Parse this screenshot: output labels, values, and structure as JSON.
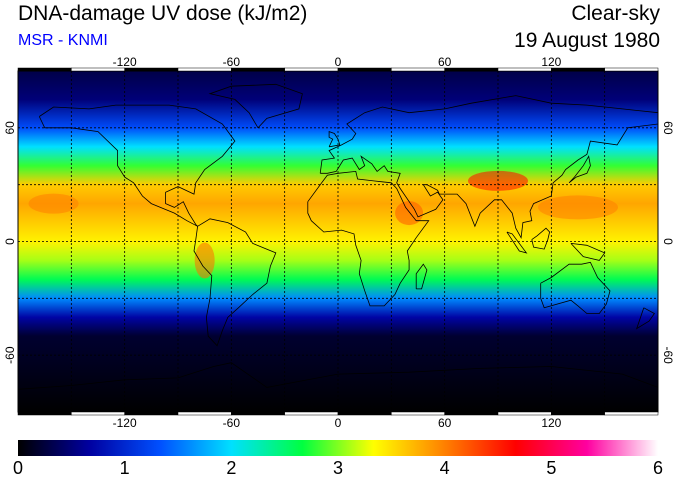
{
  "header": {
    "title": "DNA-damage UV dose (kJ/m2)",
    "subtitle": "MSR - KNMI",
    "subtitle_color": "#0000ff",
    "sky": "Clear-sky",
    "date": "19 August 1980"
  },
  "map": {
    "lon_ticks": [
      "-120",
      "-60",
      "0",
      "60",
      "120"
    ],
    "lat_ticks": [
      "60",
      "0",
      "-60"
    ],
    "grid_lon": [
      -150,
      -120,
      -90,
      -60,
      -30,
      0,
      30,
      60,
      90,
      120,
      150
    ],
    "grid_lat": [
      -60,
      -30,
      0,
      30,
      60
    ]
  },
  "colorbar": {
    "labels": [
      "0",
      "1",
      "2",
      "3",
      "4",
      "5",
      "6"
    ],
    "stops": [
      "#000000",
      "#0000a0",
      "#0050ff",
      "#00e0ff",
      "#00ff40",
      "#ffff00",
      "#ff8000",
      "#ff0000",
      "#ff00a0",
      "#ffffff"
    ]
  },
  "chart_data": {
    "type": "heatmap",
    "title": "DNA-damage UV dose (kJ/m2)",
    "subtitle": "Clear-sky, 19 August 1980",
    "value_range": [
      0,
      6
    ],
    "lat_profile": [
      {
        "lat": 90,
        "value": 0.3
      },
      {
        "lat": 75,
        "value": 0.5
      },
      {
        "lat": 60,
        "value": 1.3
      },
      {
        "lat": 50,
        "value": 2.0
      },
      {
        "lat": 40,
        "value": 2.8
      },
      {
        "lat": 30,
        "value": 3.6
      },
      {
        "lat": 20,
        "value": 3.8
      },
      {
        "lat": 10,
        "value": 3.6
      },
      {
        "lat": 0,
        "value": 3.4
      },
      {
        "lat": -10,
        "value": 3.1
      },
      {
        "lat": -20,
        "value": 2.6
      },
      {
        "lat": -30,
        "value": 1.6
      },
      {
        "lat": -40,
        "value": 0.7
      },
      {
        "lat": -50,
        "value": 0.2
      },
      {
        "lat": -90,
        "value": 0.0
      }
    ]
  }
}
